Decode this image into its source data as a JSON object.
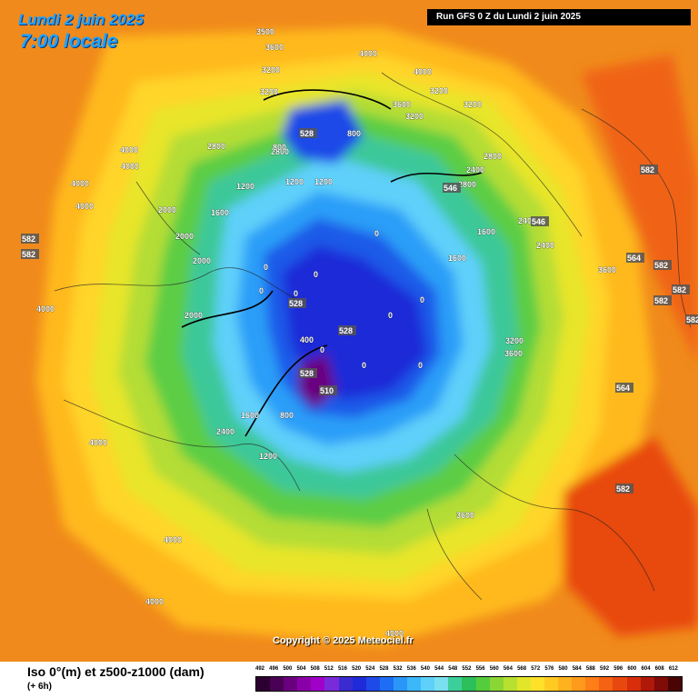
{
  "header": {
    "date_label": "Lundi 2 juin 2025",
    "time_label": "7:00 locale",
    "run_label": "Run GFS 0 Z du Lundi 2 juin 2025"
  },
  "footer": {
    "title": "Iso 0°(m) et z500-z1000 (dam)",
    "step": "(+ 6h)",
    "copyright": "Copyright © 2025 Meteociel.fr"
  },
  "legend": {
    "ticks": [
      "492",
      "496",
      "500",
      "504",
      "508",
      "512",
      "516",
      "520",
      "524",
      "528",
      "532",
      "536",
      "540",
      "544",
      "548",
      "552",
      "556",
      "560",
      "564",
      "568",
      "572",
      "576",
      "580",
      "584",
      "588",
      "592",
      "596",
      "600",
      "604",
      "608",
      "612"
    ],
    "colors": [
      "#2b0030",
      "#4a0055",
      "#6a0080",
      "#8a00a8",
      "#a000c8",
      "#7a2bd9",
      "#3a2bd0",
      "#1f2ad8",
      "#1e4ae8",
      "#1e6ef4",
      "#2a96f8",
      "#3cb8fa",
      "#5ed0fa",
      "#7ae0f0",
      "#3ccf9c",
      "#2cbf5a",
      "#55cc3c",
      "#8ad634",
      "#b8e030",
      "#e2e62a",
      "#ffe12a",
      "#ffcb22",
      "#ffb21e",
      "#ff9a1c",
      "#ff7e18",
      "#f56214",
      "#e84810",
      "#d82e0c",
      "#b0180a",
      "#800c08",
      "#4a0404"
    ]
  },
  "map": {
    "labels": [
      {
        "t": "3500",
        "k": "mapnum"
      },
      {
        "t": "3600",
        "k": "mapnum"
      },
      {
        "t": "3200",
        "k": "mapnum"
      },
      {
        "t": "3200",
        "k": "mapnum"
      },
      {
        "t": "4000",
        "k": "mapnum"
      },
      {
        "t": "4000",
        "k": "mapnum"
      },
      {
        "t": "4000",
        "k": "mapnum"
      },
      {
        "t": "4000",
        "k": "mapnum"
      },
      {
        "t": "4000",
        "k": "mapnum"
      },
      {
        "t": "4000",
        "k": "mapnum"
      },
      {
        "t": "4000",
        "k": "mapnum"
      },
      {
        "t": "4000",
        "k": "mapnum"
      },
      {
        "t": "4000",
        "k": "mapnum"
      },
      {
        "t": "4000",
        "k": "mapnum"
      },
      {
        "t": "4000",
        "k": "mapnum"
      },
      {
        "t": "3600",
        "k": "mapnum"
      },
      {
        "t": "3600",
        "k": "mapnum"
      },
      {
        "t": "3600",
        "k": "mapnum"
      },
      {
        "t": "3600",
        "k": "mapnum"
      },
      {
        "t": "3200",
        "k": "mapnum"
      },
      {
        "t": "3200",
        "k": "mapnum"
      },
      {
        "t": "3200",
        "k": "mapnum"
      },
      {
        "t": "3200",
        "k": "mapnum"
      },
      {
        "t": "2800",
        "k": "mapnum"
      },
      {
        "t": "2800",
        "k": "mapnum"
      },
      {
        "t": "2800",
        "k": "mapnum"
      },
      {
        "t": "2800",
        "k": "mapnum"
      },
      {
        "t": "2400",
        "k": "mapnum"
      },
      {
        "t": "2400",
        "k": "mapnum"
      },
      {
        "t": "2400",
        "k": "mapnum"
      },
      {
        "t": "2400",
        "k": "mapnum"
      },
      {
        "t": "2000",
        "k": "mapnum"
      },
      {
        "t": "2000",
        "k": "mapnum"
      },
      {
        "t": "2000",
        "k": "mapnum"
      },
      {
        "t": "2000",
        "k": "mapnum"
      },
      {
        "t": "1600",
        "k": "mapnum"
      },
      {
        "t": "1600",
        "k": "mapnum"
      },
      {
        "t": "1600",
        "k": "mapnum"
      },
      {
        "t": "1600",
        "k": "mapnum"
      },
      {
        "t": "1200",
        "k": "mapnum"
      },
      {
        "t": "1200",
        "k": "mapnum"
      },
      {
        "t": "1200",
        "k": "mapnum"
      },
      {
        "t": "1200",
        "k": "mapnum"
      },
      {
        "t": "800",
        "k": "mapnum"
      },
      {
        "t": "800",
        "k": "mapnum"
      },
      {
        "t": "800",
        "k": "mapnum"
      },
      {
        "t": "400",
        "k": "mapnum"
      },
      {
        "t": "0",
        "k": "mapnum"
      },
      {
        "t": "0",
        "k": "mapnum"
      },
      {
        "t": "0",
        "k": "mapnum"
      },
      {
        "t": "0",
        "k": "mapnum"
      },
      {
        "t": "0",
        "k": "mapnum"
      },
      {
        "t": "0",
        "k": "mapnum"
      },
      {
        "t": "0",
        "k": "mapnum"
      },
      {
        "t": "0",
        "k": "mapnum"
      },
      {
        "t": "0",
        "k": "mapnum"
      },
      {
        "t": "0",
        "k": "mapnum"
      },
      {
        "t": "582",
        "k": "mapbox"
      },
      {
        "t": "582",
        "k": "mapbox"
      },
      {
        "t": "582",
        "k": "mapbox"
      },
      {
        "t": "582",
        "k": "mapbox"
      },
      {
        "t": "582",
        "k": "mapbox"
      },
      {
        "t": "582",
        "k": "mapbox"
      },
      {
        "t": "582",
        "k": "mapbox"
      },
      {
        "t": "582",
        "k": "mapbox"
      },
      {
        "t": "564",
        "k": "mapbox"
      },
      {
        "t": "564",
        "k": "mapbox"
      },
      {
        "t": "546",
        "k": "mapbox"
      },
      {
        "t": "546",
        "k": "mapbox"
      },
      {
        "t": "528",
        "k": "mapbox"
      },
      {
        "t": "528",
        "k": "mapbox"
      },
      {
        "t": "528",
        "k": "mapbox"
      },
      {
        "t": "528",
        "k": "mapbox"
      },
      {
        "t": "510",
        "k": "mapbox"
      }
    ]
  }
}
